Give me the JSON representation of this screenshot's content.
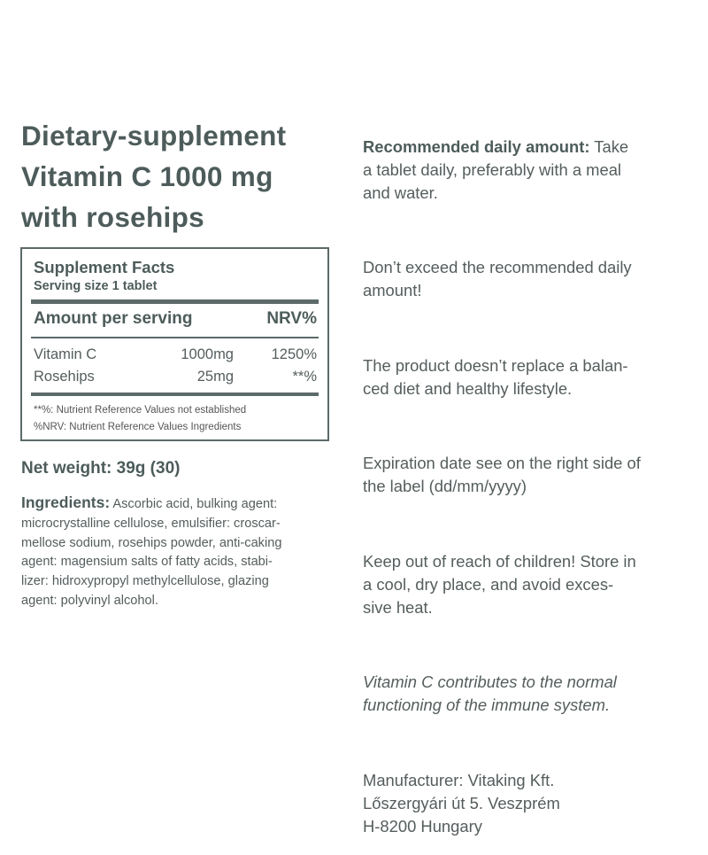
{
  "title": [
    "Dietary-supplement",
    "Vitamin C 1000 mg",
    "with rosehips"
  ],
  "facts": {
    "heading": "Supplement Facts",
    "serving": "Serving size 1 tablet",
    "amount_header": "Amount per serving",
    "nrv_header": "NRV%",
    "rows": [
      {
        "name": "Vitamin C",
        "amount": "1000mg",
        "nrv": "1250%"
      },
      {
        "name": "Rosehips",
        "amount": "25mg",
        "nrv": "**%"
      }
    ],
    "footnotes": [
      "**%: Nutrient Reference Values not established",
      "%NRV: Nutrient Reference Values Ingredients"
    ]
  },
  "net_weight": "Net weight: 39g (30)",
  "ingredients": {
    "label": "Ingredients:",
    "lines": [
      " Ascorbic acid, bulking agent:",
      "microcrystalline cellulose, emulsifier: croscar-",
      "mellose sodium, rosehips powder, anti-caking",
      "agent: magensium salts of fatty acids, stabi-",
      "lizer: hidroxypropyl methylcellulose, glazing",
      "agent: polyvinyl alcohol."
    ]
  },
  "right": {
    "recommended_label": "Recommended daily amount:",
    "recommended_lines": [
      " Take",
      "a tablet daily, preferably with a meal",
      "and water."
    ],
    "exceed": [
      "Don’t exceed the recommended daily",
      "amount!"
    ],
    "replace": [
      "The product doesn’t replace a balan-",
      "ced diet and healthy lifestyle."
    ],
    "expiration": [
      "Expiration date see on the right side of",
      "the label (dd/mm/yyyy)"
    ],
    "storage": [
      "Keep out of reach of children! Store in",
      "a cool, dry place, and avoid exces-",
      "sive heat."
    ],
    "claim": [
      "Vitamin C contributes to the normal",
      "functioning of the immune system."
    ],
    "manufacturer": [
      "Manufacturer: Vitaking Kft.",
      "Lőszergyári út 5. Veszprém",
      "H-8200 Hungary"
    ]
  }
}
